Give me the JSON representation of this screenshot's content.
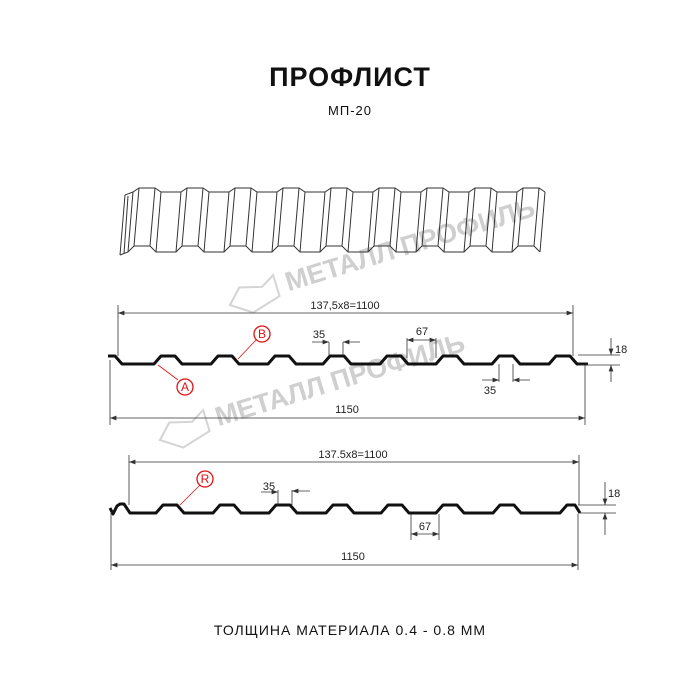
{
  "header": {
    "title": "ПРОФЛИСТ",
    "subtitle": "МП-20"
  },
  "watermark": "МЕТАЛЛ ПРОФИЛЬ",
  "profile_top": {
    "pitch_label": "137,5x8=1100",
    "width_label": "1150",
    "rib_top_label": "35",
    "rib_bottom_label": "35",
    "valley_label": "67",
    "height_label": "18",
    "callout_a": "A",
    "callout_b": "B"
  },
  "profile_bottom": {
    "pitch_label": "137.5x8=1100",
    "width_label": "1150",
    "rib_top_label": "35",
    "valley_label": "67",
    "height_label": "18",
    "callout_r": "R"
  },
  "footer": {
    "thickness": "ТОЛЩИНА МАТЕРИАЛА 0.4 - 0.8 ММ"
  },
  "colors": {
    "profile": "#111111",
    "callout": "#e01010",
    "watermark": "#cfcfcf"
  }
}
